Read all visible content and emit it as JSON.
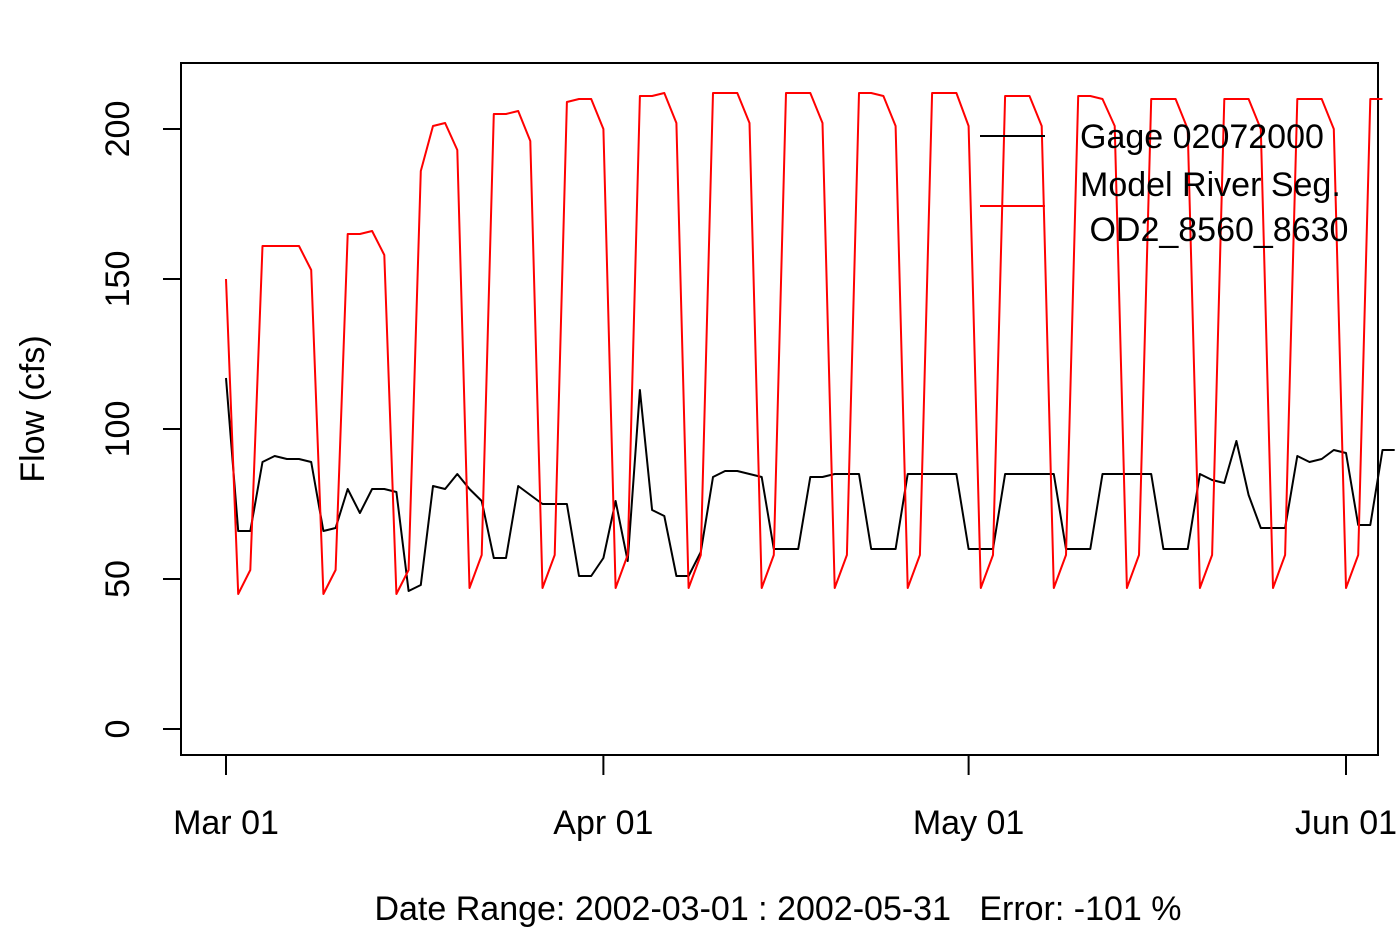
{
  "chart_data": {
    "type": "line",
    "title": "",
    "xlabel": "Date Range: 2002-03-01 : 2002-05-31   Error: -101 %",
    "ylabel": "Flow (cfs)",
    "xlim": [
      "2002-03-01",
      "2002-05-31"
    ],
    "ylim": [
      0,
      220
    ],
    "y_ticks": [
      0,
      50,
      100,
      150,
      200
    ],
    "x_ticks": [
      {
        "date": "2002-03-01",
        "label": "Mar 01"
      },
      {
        "date": "2002-04-01",
        "label": "Apr 01"
      },
      {
        "date": "2002-05-01",
        "label": "May 01"
      },
      {
        "date": "2002-06-01",
        "label": "Jun 01"
      }
    ],
    "legend": {
      "position": "top-right",
      "entries": [
        {
          "label": "Gage 02072000",
          "color": "#000000"
        },
        {
          "label": "Model River Seg.",
          "label2": " OD2_8560_8630",
          "color": "#ff0000"
        }
      ]
    },
    "grid": false,
    "series": [
      {
        "name": "Gage 02072000",
        "color": "#000000",
        "x_start": "2002-03-01",
        "values": [
          117,
          66,
          66,
          89,
          91,
          90,
          90,
          89,
          66,
          67,
          80,
          72,
          80,
          80,
          79,
          46,
          48,
          81,
          80,
          85,
          80,
          76,
          57,
          57,
          81,
          78,
          75,
          75,
          75,
          51,
          51,
          57,
          76,
          56,
          113,
          73,
          71,
          51,
          51,
          59,
          84,
          86,
          86,
          85,
          84,
          60,
          60,
          60,
          84,
          84,
          85,
          85,
          85,
          60,
          60,
          60,
          85,
          85,
          85,
          85,
          85,
          60,
          60,
          60,
          85,
          85,
          85,
          85,
          85,
          60,
          60,
          60,
          85,
          85,
          85,
          85,
          85,
          60,
          60,
          60,
          85,
          83,
          82,
          96,
          78,
          67,
          67,
          67,
          91,
          89,
          90,
          93,
          92,
          68,
          68,
          93,
          93
        ]
      },
      {
        "name": "Model River Seg.  OD2_8560_8630",
        "color": "#ff0000",
        "x_start": "2002-03-01",
        "values": [
          150,
          45,
          53,
          161,
          161,
          161,
          161,
          153,
          45,
          53,
          165,
          165,
          166,
          158,
          45,
          53,
          186,
          201,
          202,
          193,
          47,
          58,
          205,
          205,
          206,
          196,
          47,
          58,
          209,
          210,
          210,
          200,
          47,
          58,
          211,
          211,
          212,
          202,
          47,
          58,
          212,
          212,
          212,
          202,
          47,
          58,
          212,
          212,
          212,
          202,
          47,
          58,
          212,
          212,
          211,
          201,
          47,
          58,
          212,
          212,
          212,
          201,
          47,
          58,
          211,
          211,
          211,
          201,
          47,
          58,
          211,
          211,
          210,
          201,
          47,
          58,
          210,
          210,
          210,
          200,
          47,
          58,
          210,
          210,
          210,
          200,
          47,
          58,
          210,
          210,
          210,
          200,
          47,
          58,
          210,
          210
        ]
      }
    ]
  }
}
